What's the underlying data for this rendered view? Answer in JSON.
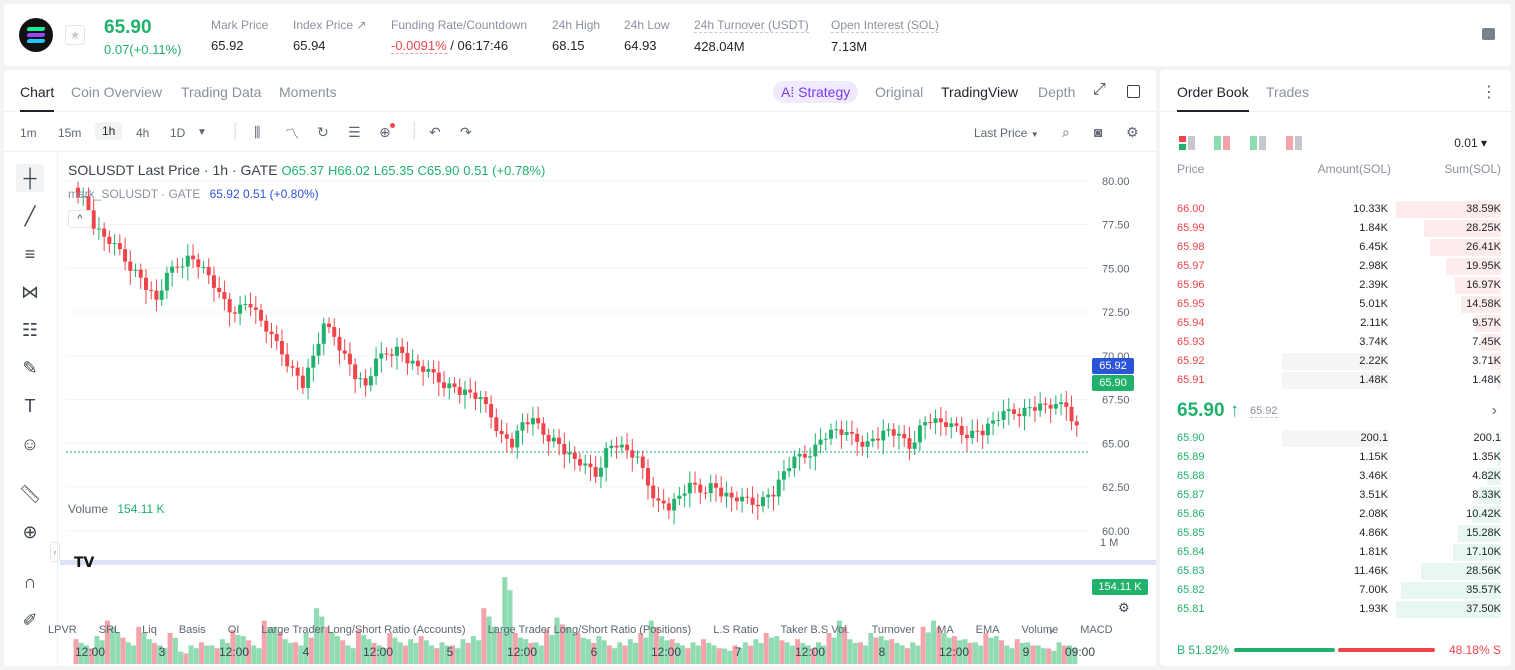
{
  "ticker": {
    "last_price": "65.90",
    "change": "0.07(+0.11%)",
    "stats": [
      {
        "label": "Mark Price",
        "value": "65.92"
      },
      {
        "label": "Index Price ↗",
        "value": "65.94"
      },
      {
        "label": "Funding Rate/Countdown",
        "value": "-0.0091%",
        "value2": "/ 06:17:46"
      },
      {
        "label": "24h High",
        "value": "68.15"
      },
      {
        "label": "24h Low",
        "value": "64.93"
      },
      {
        "label": "24h Turnover (USDT)",
        "value": "428.04M"
      },
      {
        "label": "Open Interest (SOL)",
        "value": "7.13M"
      }
    ]
  },
  "chart_tabs": [
    "Chart",
    "Coin Overview",
    "Trading Data",
    "Moments"
  ],
  "strategy_label": "A⁞ Strategy",
  "view_modes": [
    "Original",
    "TradingView",
    "Depth"
  ],
  "timeframes": [
    "1m",
    "15m",
    "1h",
    "4h",
    "1D"
  ],
  "price_source": "Last Price",
  "chart": {
    "title_prefix": "SOLUSDT Last Price · 1h · GATE",
    "ohlc": {
      "o": "O65.37",
      "h": "H66.02",
      "l": "L65.35",
      "c": "C65.90",
      "chg": "0.51 (+0.78%)"
    },
    "mark_line": "mark_SOLUSDT · GATE",
    "mark_values": "65.92  0.51 (+0.80%)",
    "volume_label": "Volume",
    "volume_value": "154.11 K",
    "mark_tag": "65.92",
    "last_tag": "65.90",
    "volume_tag": "154.11 K",
    "volume_axis_label": "1 M"
  },
  "chart_data": {
    "type": "candlestick",
    "price_ticks": [
      "80.00",
      "77.50",
      "75.00",
      "72.50",
      "70.00",
      "67.50",
      "65.00",
      "62.50",
      "60.00"
    ],
    "price_range": [
      58.5,
      80.5
    ],
    "x_ticks": [
      "12:00",
      "3",
      "12:00",
      "4",
      "12:00",
      "5",
      "12:00",
      "6",
      "12:00",
      "7",
      "12:00",
      "8",
      "12:00",
      "9",
      "09:00"
    ],
    "close_path": [
      79.0,
      77.5,
      76.8,
      76.2,
      75.5,
      74.8,
      74.0,
      73.2,
      74.5,
      75.2,
      75.6,
      75.3,
      74.6,
      73.4,
      72.6,
      72.8,
      73.0,
      72.0,
      71.0,
      70.2,
      69.2,
      68.4,
      70.0,
      71.6,
      71.2,
      70.0,
      68.9,
      68.3,
      69.6,
      70.2,
      70.4,
      69.8,
      69.4,
      69.0,
      68.6,
      68.3,
      68.0,
      67.9,
      67.4,
      66.6,
      65.4,
      65.0,
      66.2,
      66.2,
      65.6,
      65.2,
      64.6,
      64.1,
      63.6,
      63.2,
      64.6,
      65.0,
      64.6,
      64.0,
      62.7,
      61.6,
      61.4,
      62.0,
      62.5,
      62.3,
      62.6,
      62.2,
      61.9,
      61.7,
      61.6,
      61.8,
      62.2,
      63.4,
      64.0,
      64.3,
      64.8,
      65.5,
      65.8,
      65.4,
      65.2,
      65.0,
      65.4,
      65.8,
      65.3,
      64.8,
      65.9,
      66.4,
      66.2,
      65.9,
      65.6,
      65.6,
      65.7,
      66.3,
      66.6,
      66.8,
      66.9,
      67.1,
      67.2,
      67.0,
      67.2,
      65.9
    ],
    "volume_heights": [
      0.4,
      0.3,
      0.45,
      0.7,
      0.5,
      0.35,
      0.6,
      0.4,
      0.3,
      0.5,
      0.2,
      0.3,
      0.35,
      0.3,
      0.4,
      0.55,
      0.45,
      0.3,
      0.7,
      0.6,
      0.4,
      0.35,
      0.5,
      0.9,
      0.6,
      0.45,
      0.3,
      0.55,
      0.4,
      0.3,
      0.5,
      0.35,
      0.4,
      0.45,
      0.3,
      0.35,
      0.3,
      0.4,
      0.45,
      0.9,
      0.6,
      1.4,
      0.5,
      0.4,
      0.35,
      0.55,
      0.75,
      0.6,
      0.5,
      0.4,
      0.45,
      0.3,
      0.35,
      0.4,
      0.5,
      0.7,
      0.45,
      0.4,
      0.3,
      0.35,
      0.4,
      0.3,
      0.25,
      0.3,
      0.35,
      0.4,
      0.5,
      0.45,
      0.35,
      0.4,
      0.3,
      0.35,
      0.5,
      0.7,
      0.4,
      0.35,
      0.5,
      0.45,
      0.4,
      0.3,
      0.35,
      0.6,
      0.7,
      0.5,
      0.45,
      0.4,
      0.35,
      0.5,
      0.45,
      0.3,
      0.4,
      0.35,
      0.3,
      0.25,
      0.35,
      0.3
    ]
  },
  "bottom_indicators": [
    "LPVR",
    "SRL",
    "Liq",
    "Basis",
    "OI",
    "Large Trader Long/Short Ratio (Accounts)",
    "Large Trader Long/Short Ratio (Positions)",
    "L.S Ratio",
    "Taker B.S Vol.",
    "Turnover",
    "MA",
    "EMA",
    "Volume",
    "MACD"
  ],
  "orderbook": {
    "tabs": [
      "Order Book",
      "Trades"
    ],
    "precision": "0.01 ▾",
    "headers": [
      "Price",
      "Amount(SOL)",
      "Sum(SOL)"
    ],
    "asks": [
      {
        "price": "66.00",
        "amount": "10.33K",
        "sum": "38.59K",
        "depth": 1.0,
        "amt_frac": 0.0
      },
      {
        "price": "65.99",
        "amount": "1.84K",
        "sum": "28.25K",
        "depth": 0.73,
        "amt_frac": 0.0
      },
      {
        "price": "65.98",
        "amount": "6.45K",
        "sum": "26.41K",
        "depth": 0.68,
        "amt_frac": 0.0
      },
      {
        "price": "65.97",
        "amount": "2.98K",
        "sum": "19.95K",
        "depth": 0.52,
        "amt_frac": 0.0
      },
      {
        "price": "65.96",
        "amount": "2.39K",
        "sum": "16.97K",
        "depth": 0.44,
        "amt_frac": 0.0
      },
      {
        "price": "65.95",
        "amount": "5.01K",
        "sum": "14.58K",
        "depth": 0.38,
        "amt_frac": 0.0
      },
      {
        "price": "65.94",
        "amount": "2.11K",
        "sum": "9.57K",
        "depth": 0.25,
        "amt_frac": 0.0
      },
      {
        "price": "65.93",
        "amount": "3.74K",
        "sum": "7.45K",
        "depth": 0.19,
        "amt_frac": 0.0
      },
      {
        "price": "65.92",
        "amount": "2.22K",
        "sum": "3.71K",
        "depth": 0.1,
        "amt_frac": 0.37
      },
      {
        "price": "65.91",
        "amount": "1.48K",
        "sum": "1.48K",
        "depth": 0.04,
        "amt_frac": 0.37
      }
    ],
    "last_price": "65.90 ↑",
    "mark_price": "65.92",
    "bids": [
      {
        "price": "65.90",
        "amount": "200.1",
        "sum": "200.1",
        "depth": 0.005,
        "amt_frac": 0.37
      },
      {
        "price": "65.89",
        "amount": "1.15K",
        "sum": "1.35K",
        "depth": 0.035,
        "amt_frac": 0.0
      },
      {
        "price": "65.88",
        "amount": "3.46K",
        "sum": "4.82K",
        "depth": 0.13,
        "amt_frac": 0.0
      },
      {
        "price": "65.87",
        "amount": "3.51K",
        "sum": "8.33K",
        "depth": 0.22,
        "amt_frac": 0.0
      },
      {
        "price": "65.86",
        "amount": "2.08K",
        "sum": "10.42K",
        "depth": 0.28,
        "amt_frac": 0.0
      },
      {
        "price": "65.85",
        "amount": "4.86K",
        "sum": "15.28K",
        "depth": 0.41,
        "amt_frac": 0.0
      },
      {
        "price": "65.84",
        "amount": "1.81K",
        "sum": "17.10K",
        "depth": 0.46,
        "amt_frac": 0.0
      },
      {
        "price": "65.83",
        "amount": "11.46K",
        "sum": "28.56K",
        "depth": 0.76,
        "amt_frac": 0.0
      },
      {
        "price": "65.82",
        "amount": "7.00K",
        "sum": "35.57K",
        "depth": 0.95,
        "amt_frac": 0.0
      },
      {
        "price": "65.81",
        "amount": "1.93K",
        "sum": "37.50K",
        "depth": 1.0,
        "amt_frac": 0.0
      }
    ],
    "buy_ratio": "B 51.82%",
    "sell_ratio": "48.18% S",
    "buy_fraction": 0.5182
  },
  "colors": {
    "up": "#20b26c",
    "down": "#ef454a",
    "up_bar": "#8fdcb3",
    "down_bar": "#f5a3aa",
    "accent": "#7a3cf0",
    "mark_tag": "#2b54d8"
  }
}
